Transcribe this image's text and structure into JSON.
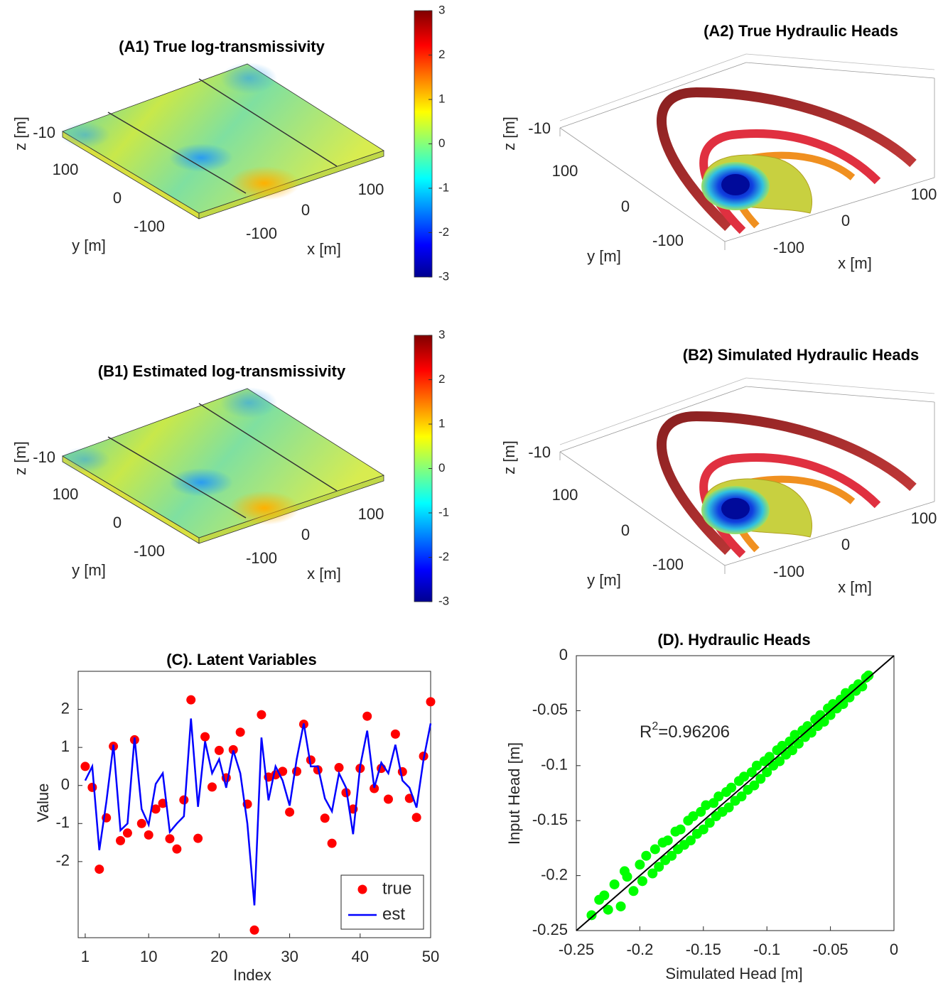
{
  "chart_data": [
    {
      "type": "surface",
      "title": "(A1) True log-transmissivity",
      "xlabel": "x [m]",
      "ylabel": "y [m]",
      "zlabel": "z [m]",
      "xticks": [
        -100,
        0,
        100
      ],
      "yticks": [
        100,
        0,
        -100
      ],
      "zticks": [
        -10
      ],
      "colorbar": {
        "lim": [
          -3,
          3
        ],
        "ticks": [
          -3,
          -2,
          -1,
          0,
          1,
          2,
          3
        ]
      }
    },
    {
      "type": "isosurface",
      "title": "(A2) True Hydraulic Heads",
      "xlabel": "x [m]",
      "ylabel": "y [m]",
      "zlabel": "z [m]",
      "xticks": [
        -100,
        0,
        100
      ],
      "yticks": [
        100,
        0,
        -100
      ],
      "zticks": [
        -10
      ]
    },
    {
      "type": "surface",
      "title": "(B1) Estimated log-transmissivity",
      "xlabel": "x [m]",
      "ylabel": "y [m]",
      "zlabel": "z [m]",
      "xticks": [
        -100,
        0,
        100
      ],
      "yticks": [
        100,
        0,
        -100
      ],
      "zticks": [
        -10
      ],
      "colorbar": {
        "lim": [
          -3,
          3
        ],
        "ticks": [
          -3,
          -2,
          -1,
          0,
          1,
          2,
          3
        ]
      }
    },
    {
      "type": "isosurface",
      "title": "(B2) Simulated Hydraulic Heads",
      "xlabel": "x [m]",
      "ylabel": "y [m]",
      "zlabel": "z [m]",
      "xticks": [
        -100,
        0,
        100
      ],
      "yticks": [
        100,
        0,
        -100
      ],
      "zticks": [
        -10
      ]
    },
    {
      "type": "line_scatter",
      "title": "(C). Latent Variables",
      "xlabel": "Index",
      "ylabel": "Value",
      "x": [
        1,
        2,
        3,
        4,
        5,
        6,
        7,
        8,
        9,
        10,
        11,
        12,
        13,
        14,
        15,
        16,
        17,
        18,
        19,
        20,
        21,
        22,
        23,
        24,
        25,
        26,
        27,
        28,
        29,
        30,
        31,
        32,
        33,
        34,
        35,
        36,
        37,
        38,
        39,
        40,
        41,
        42,
        43,
        44,
        45,
        46,
        47,
        48,
        49,
        50
      ],
      "xlim": [
        0,
        50
      ],
      "xticks": [
        1,
        10,
        20,
        30,
        40,
        50
      ],
      "ylim": [
        -4,
        3
      ],
      "yticks": [
        -2,
        -1,
        0,
        1,
        2
      ],
      "legend": "lower-right",
      "series": [
        {
          "name": "true",
          "color": "#ff0000",
          "marker": "dot",
          "values": [
            0.5,
            -0.05,
            -2.2,
            -0.85,
            1.03,
            -1.45,
            -1.25,
            1.2,
            -1.0,
            -1.3,
            -0.62,
            -0.47,
            -1.4,
            -1.67,
            -0.38,
            2.25,
            -1.39,
            1.28,
            -0.04,
            0.92,
            0.2,
            0.94,
            1.4,
            -0.49,
            -3.8,
            1.86,
            0.22,
            0.28,
            0.37,
            -0.7,
            0.37,
            1.61,
            0.67,
            0.41,
            -0.86,
            -1.52,
            0.47,
            -0.19,
            -0.62,
            0.45,
            1.82,
            -0.08,
            0.45,
            -0.36,
            1.35,
            0.36,
            -0.34,
            -0.84,
            0.77,
            2.2
          ]
        },
        {
          "name": "est",
          "color": "#0000ff",
          "marker": "line",
          "values": [
            0.13,
            0.5,
            -1.7,
            -0.43,
            1.07,
            -1.18,
            -1.0,
            1.26,
            -0.62,
            -1.03,
            0.04,
            0.32,
            -1.22,
            -1.0,
            -0.81,
            1.76,
            -0.56,
            1.16,
            0.32,
            0.69,
            -0.06,
            0.92,
            0.32,
            -1.0,
            -3.15,
            1.26,
            -0.39,
            0.5,
            0.13,
            -0.53,
            0.69,
            1.63,
            0.5,
            0.5,
            -0.34,
            -0.68,
            0.32,
            -0.06,
            -1.28,
            0.5,
            1.44,
            -0.06,
            0.6,
            0.32,
            1.07,
            0.13,
            -0.06,
            -0.58,
            0.69,
            1.63
          ]
        }
      ]
    },
    {
      "type": "scatter",
      "title": "(D). Hydraulic Heads",
      "xlabel": "Simulated Head [m]",
      "ylabel": "Input Head [m]",
      "annotation": {
        "text": "R",
        "superscript": "2",
        "rest": "=0.96206"
      },
      "xlim": [
        -0.25,
        0
      ],
      "xticks": [
        -0.25,
        -0.2,
        -0.15,
        -0.1,
        -0.05,
        0
      ],
      "ylim": [
        -0.25,
        0
      ],
      "yticks": [
        -0.25,
        -0.2,
        -0.15,
        -0.1,
        -0.05,
        0
      ],
      "color": "#00ff00",
      "diagonal": true,
      "x": [
        -0.238,
        -0.232,
        -0.228,
        -0.225,
        -0.22,
        -0.215,
        -0.212,
        -0.21,
        -0.205,
        -0.2,
        -0.198,
        -0.195,
        -0.19,
        -0.188,
        -0.185,
        -0.182,
        -0.18,
        -0.178,
        -0.175,
        -0.172,
        -0.17,
        -0.168,
        -0.165,
        -0.162,
        -0.16,
        -0.158,
        -0.155,
        -0.152,
        -0.15,
        -0.148,
        -0.145,
        -0.142,
        -0.14,
        -0.138,
        -0.135,
        -0.132,
        -0.13,
        -0.128,
        -0.125,
        -0.122,
        -0.12,
        -0.118,
        -0.115,
        -0.112,
        -0.11,
        -0.108,
        -0.105,
        -0.102,
        -0.1,
        -0.098,
        -0.095,
        -0.092,
        -0.09,
        -0.088,
        -0.085,
        -0.082,
        -0.08,
        -0.078,
        -0.075,
        -0.072,
        -0.07,
        -0.068,
        -0.065,
        -0.062,
        -0.06,
        -0.058,
        -0.055,
        -0.052,
        -0.05,
        -0.048,
        -0.045,
        -0.042,
        -0.04,
        -0.038,
        -0.035,
        -0.032,
        -0.03,
        -0.028,
        -0.025,
        -0.022,
        -0.02
      ],
      "values": [
        -0.236,
        -0.222,
        -0.218,
        -0.231,
        -0.208,
        -0.228,
        -0.196,
        -0.201,
        -0.214,
        -0.19,
        -0.205,
        -0.182,
        -0.198,
        -0.176,
        -0.192,
        -0.17,
        -0.186,
        -0.168,
        -0.182,
        -0.16,
        -0.176,
        -0.158,
        -0.172,
        -0.15,
        -0.168,
        -0.146,
        -0.162,
        -0.142,
        -0.158,
        -0.136,
        -0.152,
        -0.134,
        -0.146,
        -0.128,
        -0.142,
        -0.124,
        -0.138,
        -0.12,
        -0.132,
        -0.114,
        -0.128,
        -0.11,
        -0.122,
        -0.106,
        -0.118,
        -0.1,
        -0.112,
        -0.096,
        -0.106,
        -0.092,
        -0.1,
        -0.086,
        -0.096,
        -0.082,
        -0.09,
        -0.078,
        -0.086,
        -0.072,
        -0.08,
        -0.068,
        -0.074,
        -0.064,
        -0.07,
        -0.058,
        -0.064,
        -0.054,
        -0.06,
        -0.048,
        -0.054,
        -0.044,
        -0.048,
        -0.04,
        -0.044,
        -0.034,
        -0.038,
        -0.03,
        -0.032,
        -0.026,
        -0.028,
        -0.02,
        -0.018
      ]
    }
  ]
}
